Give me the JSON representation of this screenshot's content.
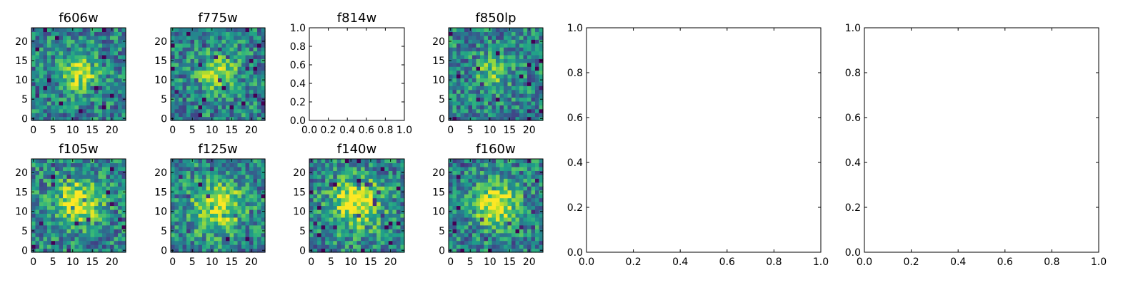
{
  "chart_data": [
    {
      "type": "heatmap",
      "title": "f606w",
      "xticks": [
        "0",
        "5",
        "10",
        "15",
        "20"
      ],
      "yticks": [
        "0",
        "5",
        "10",
        "15",
        "20"
      ],
      "xlim": [
        -0.5,
        23.5
      ],
      "ylim": [
        -0.5,
        23.5
      ],
      "grid_size": 24,
      "colormap": "viridis",
      "blob": {
        "x": 11.5,
        "y": 12,
        "strength": 0.5,
        "spread": 3.0
      },
      "seed": 11
    },
    {
      "type": "heatmap",
      "title": "f775w",
      "xticks": [
        "0",
        "5",
        "10",
        "15",
        "20"
      ],
      "yticks": [
        "0",
        "5",
        "10",
        "15",
        "20"
      ],
      "xlim": [
        -0.5,
        23.5
      ],
      "ylim": [
        -0.5,
        23.5
      ],
      "grid_size": 24,
      "colormap": "viridis",
      "blob": {
        "x": 11.5,
        "y": 11.5,
        "strength": 0.4,
        "spread": 3.5
      },
      "seed": 23
    },
    {
      "type": "empty",
      "title": "f814w",
      "xticks": [
        "0.0",
        "0.2",
        "0.4",
        "0.6",
        "0.8",
        "1.0"
      ],
      "yticks": [
        "0.0",
        "0.2",
        "0.4",
        "0.6",
        "0.8",
        "1.0"
      ],
      "xlim": [
        0,
        1
      ],
      "ylim": [
        0,
        1
      ]
    },
    {
      "type": "heatmap",
      "title": "f850lp",
      "xticks": [
        "0",
        "5",
        "10",
        "15",
        "20"
      ],
      "yticks": [
        "0",
        "5",
        "10",
        "15",
        "20"
      ],
      "xlim": [
        -0.5,
        23.5
      ],
      "ylim": [
        -0.5,
        23.5
      ],
      "grid_size": 24,
      "colormap": "viridis",
      "blob": {
        "x": 11,
        "y": 12,
        "strength": 0.3,
        "spread": 3.0
      },
      "seed": 37
    },
    {
      "type": "empty",
      "title": "",
      "xticks": [
        "0.0",
        "0.2",
        "0.4",
        "0.6",
        "0.8",
        "1.0"
      ],
      "yticks": [
        "0.0",
        "0.2",
        "0.4",
        "0.6",
        "0.8",
        "1.0"
      ],
      "xlim": [
        0,
        1
      ],
      "ylim": [
        0,
        1
      ]
    },
    {
      "type": "empty",
      "title": "",
      "xticks": [
        "0.0",
        "0.2",
        "0.4",
        "0.6",
        "0.8",
        "1.0"
      ],
      "yticks": [
        "0.0",
        "0.2",
        "0.4",
        "0.6",
        "0.8",
        "1.0"
      ],
      "xlim": [
        0,
        1
      ],
      "ylim": [
        0,
        1
      ]
    },
    {
      "type": "heatmap",
      "title": "f105w",
      "xticks": [
        "0",
        "5",
        "10",
        "15",
        "20"
      ],
      "yticks": [
        "0",
        "5",
        "10",
        "15",
        "20"
      ],
      "xlim": [
        -0.5,
        23.5
      ],
      "ylim": [
        -0.5,
        23.5
      ],
      "grid_size": 24,
      "colormap": "viridis",
      "blob": {
        "x": 11.5,
        "y": 12.5,
        "strength": 0.55,
        "spread": 4.0
      },
      "seed": 41
    },
    {
      "type": "heatmap",
      "title": "f125w",
      "xticks": [
        "0",
        "5",
        "10",
        "15",
        "20"
      ],
      "yticks": [
        "0",
        "5",
        "10",
        "15",
        "20"
      ],
      "xlim": [
        -0.5,
        23.5
      ],
      "ylim": [
        -0.5,
        23.5
      ],
      "grid_size": 24,
      "colormap": "viridis",
      "blob": {
        "x": 11.5,
        "y": 11.5,
        "strength": 0.5,
        "spread": 4.5
      },
      "seed": 53
    },
    {
      "type": "heatmap",
      "title": "f140w",
      "xticks": [
        "0",
        "5",
        "10",
        "15",
        "20"
      ],
      "yticks": [
        "0",
        "5",
        "10",
        "15",
        "20"
      ],
      "xlim": [
        -0.5,
        23.5
      ],
      "ylim": [
        -0.5,
        23.5
      ],
      "grid_size": 24,
      "colormap": "viridis",
      "blob": {
        "x": 11.5,
        "y": 12,
        "strength": 0.55,
        "spread": 4.5
      },
      "seed": 67
    },
    {
      "type": "heatmap",
      "title": "f160w",
      "xticks": [
        "0",
        "5",
        "10",
        "15",
        "20"
      ],
      "yticks": [
        "0",
        "5",
        "10",
        "15",
        "20"
      ],
      "xlim": [
        -0.5,
        23.5
      ],
      "ylim": [
        -0.5,
        23.5
      ],
      "grid_size": 24,
      "colormap": "viridis",
      "blob": {
        "x": 11.5,
        "y": 12,
        "strength": 0.6,
        "spread": 3.8
      },
      "seed": 79
    }
  ]
}
